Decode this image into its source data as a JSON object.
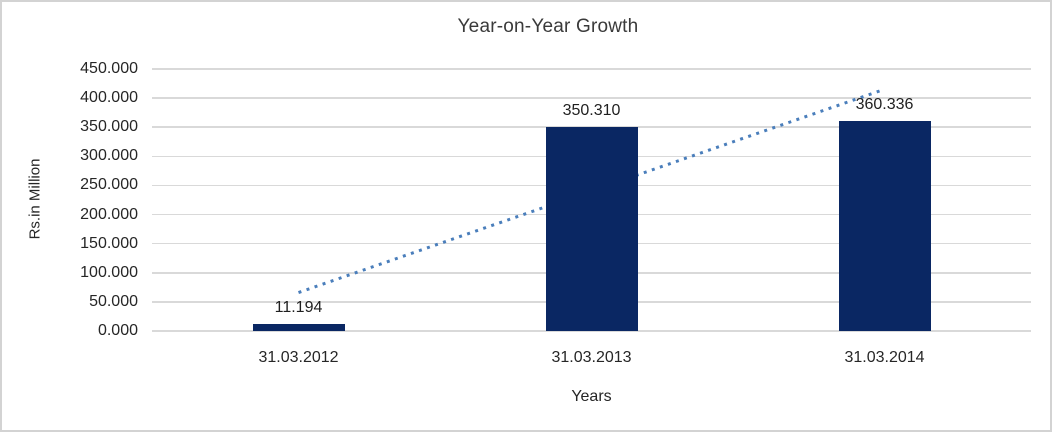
{
  "chart_data": {
    "type": "bar",
    "title": "Year-on-Year Growth",
    "xlabel": "Years",
    "ylabel": "Rs.in Million",
    "categories": [
      "31.03.2012",
      "31.03.2013",
      "31.03.2014"
    ],
    "values": [
      11.194,
      350.31,
      360.336
    ],
    "data_labels": [
      "11.194",
      "350.310",
      "360.336"
    ],
    "ylim": [
      0,
      450
    ],
    "ytick_step": 50,
    "ytick_labels": [
      "0.000",
      "50.000",
      "100.000",
      "150.000",
      "200.000",
      "250.000",
      "300.000",
      "350.000",
      "400.000",
      "450.000"
    ],
    "grid": true,
    "legend_position": "none",
    "trendline": {
      "type": "linear",
      "style": "dotted"
    }
  },
  "colors": {
    "bar": "#0a2763",
    "trendline": "#4a7ebb",
    "gridline": "#d9d9d9",
    "border": "#d3d3d3",
    "text": "#262626",
    "background": "#ffffff"
  }
}
